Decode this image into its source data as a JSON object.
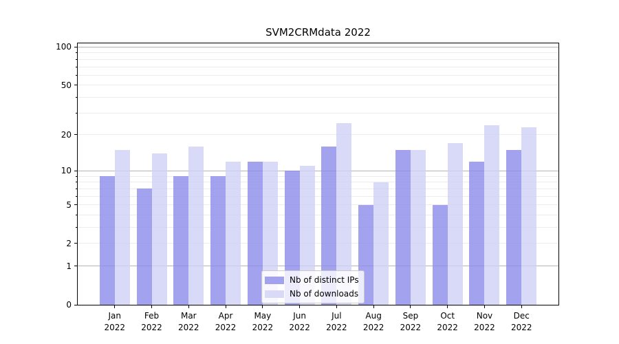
{
  "chart_data": {
    "type": "bar",
    "title": "SVM2CRMdata 2022",
    "scale": "log(1+y)",
    "categories": [
      "Jan",
      "Feb",
      "Mar",
      "Apr",
      "May",
      "Jun",
      "Jul",
      "Aug",
      "Sep",
      "Oct",
      "Nov",
      "Dec"
    ],
    "category_year": "2022",
    "series": [
      {
        "name": "Nb of distinct IPs",
        "color": "#a2a2ef",
        "values": [
          9,
          7,
          9,
          9,
          12,
          10,
          16,
          5,
          15,
          5,
          12,
          15
        ]
      },
      {
        "name": "Nb of downloads",
        "color": "#d9d9f8",
        "values": [
          15,
          14,
          16,
          12,
          12,
          11,
          25,
          8,
          15,
          17,
          24,
          23
        ]
      }
    ],
    "yticks_major": [
      0,
      1,
      2,
      5,
      10,
      20,
      50,
      100
    ],
    "yticks_minor": [
      3,
      4,
      6,
      7,
      8,
      9,
      30,
      40,
      60,
      70,
      80,
      90
    ],
    "ylim": [
      0,
      107
    ],
    "xlabel": "",
    "ylabel": "",
    "grid": "on",
    "legend_position": "lower center",
    "colors": {
      "grid_decade": "#b4b4b4",
      "grid_minor": "#ececec",
      "spine": "#000000",
      "text": "#000000"
    }
  }
}
